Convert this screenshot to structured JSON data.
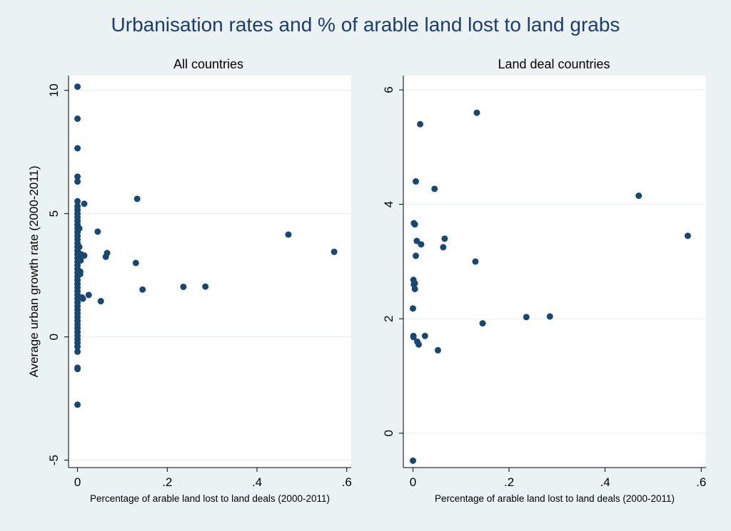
{
  "figure_title": "Urbanisation rates and % of arable land lost to land grabs",
  "colors": {
    "background": "#eaf2f3",
    "plot_bg": "#ffffff",
    "marker": "#1a476f",
    "title": "#1e3c6e",
    "grid": "#e6eded"
  },
  "chart_data": [
    {
      "type": "scatter",
      "title": "All countries",
      "xlabel": "Percentage of arable land lost to land deals (2000-2011)",
      "ylabel": "Average urban growth rate (2000-2011)",
      "xlim": [
        -0.02,
        0.61
      ],
      "ylim": [
        -5.3,
        10.6
      ],
      "xticks": [
        0,
        0.2,
        0.4,
        0.6
      ],
      "xtick_labels": [
        "0",
        ".2",
        ".4",
        ".6"
      ],
      "yticks": [
        -5,
        0,
        5,
        10
      ],
      "ytick_labels": [
        "-5",
        "0",
        "5",
        "10"
      ],
      "grid": true,
      "points": [
        [
          0,
          10.15
        ],
        [
          0,
          8.85
        ],
        [
          0,
          7.65
        ],
        [
          0,
          6.5
        ],
        [
          0,
          6.3
        ],
        [
          0,
          5.5
        ],
        [
          0,
          5.3
        ],
        [
          0,
          5.15
        ],
        [
          0,
          5.0
        ],
        [
          0,
          4.85
        ],
        [
          0,
          4.7
        ],
        [
          0,
          4.55
        ],
        [
          0,
          4.4
        ],
        [
          0,
          4.25
        ],
        [
          0,
          4.1
        ],
        [
          0,
          3.95
        ],
        [
          0,
          3.8
        ],
        [
          0,
          3.65
        ],
        [
          0,
          3.5
        ],
        [
          0,
          3.35
        ],
        [
          0,
          3.2
        ],
        [
          0,
          3.05
        ],
        [
          0,
          2.9
        ],
        [
          0,
          2.75
        ],
        [
          0,
          2.6
        ],
        [
          0,
          2.45
        ],
        [
          0,
          2.3
        ],
        [
          0,
          2.15
        ],
        [
          0,
          2.0
        ],
        [
          0,
          1.85
        ],
        [
          0,
          1.7
        ],
        [
          0,
          1.55
        ],
        [
          0,
          1.4
        ],
        [
          0,
          1.25
        ],
        [
          0,
          1.1
        ],
        [
          0,
          0.95
        ],
        [
          0,
          0.8
        ],
        [
          0,
          0.65
        ],
        [
          0,
          0.5
        ],
        [
          0,
          0.35
        ],
        [
          0,
          0.2
        ],
        [
          0,
          0.05
        ],
        [
          0,
          -0.1
        ],
        [
          0,
          -0.25
        ],
        [
          0,
          -0.4
        ],
        [
          0,
          -0.6
        ],
        [
          0,
          -1.25
        ],
        [
          0,
          -1.3
        ],
        [
          0,
          -2.75
        ],
        [
          0.002,
          3.65
        ],
        [
          0.004,
          3.65
        ],
        [
          0.004,
          4.4
        ],
        [
          0.006,
          2.55
        ],
        [
          0.006,
          2.65
        ],
        [
          0.007,
          3.1
        ],
        [
          0.008,
          3.35
        ],
        [
          0.01,
          1.6
        ],
        [
          0.012,
          1.55
        ],
        [
          0.015,
          3.3
        ],
        [
          0.015,
          5.4
        ],
        [
          0.025,
          1.7
        ],
        [
          0.045,
          4.27
        ],
        [
          0.052,
          1.45
        ],
        [
          0.063,
          3.25
        ],
        [
          0.066,
          3.4
        ],
        [
          0.13,
          3.0
        ],
        [
          0.133,
          5.6
        ],
        [
          0.145,
          1.92
        ],
        [
          0.236,
          2.03
        ],
        [
          0.285,
          2.04
        ],
        [
          0.47,
          4.15
        ],
        [
          0.572,
          3.45
        ]
      ]
    },
    {
      "type": "scatter",
      "title": "Land deal countries",
      "xlabel": "Percentage of arable land lost to land deals (2000-2011)",
      "ylabel": "",
      "xlim": [
        -0.02,
        0.61
      ],
      "ylim": [
        -0.6,
        6.25
      ],
      "xticks": [
        0,
        0.2,
        0.4,
        0.6
      ],
      "xtick_labels": [
        "0",
        ".2",
        ".4",
        ".6"
      ],
      "yticks": [
        0,
        2,
        4,
        6
      ],
      "ytick_labels": [
        "0",
        "2",
        "4",
        "6"
      ],
      "grid": true,
      "points": [
        [
          0,
          -0.48
        ],
        [
          0,
          2.18
        ],
        [
          0.001,
          1.7
        ],
        [
          0.001,
          1.68
        ],
        [
          0.001,
          2.68
        ],
        [
          0.002,
          2.6
        ],
        [
          0.002,
          3.67
        ],
        [
          0.004,
          2.52
        ],
        [
          0.004,
          3.65
        ],
        [
          0.004,
          2.62
        ],
        [
          0.006,
          3.1
        ],
        [
          0.006,
          4.4
        ],
        [
          0.008,
          3.36
        ],
        [
          0.009,
          1.6
        ],
        [
          0.012,
          1.55
        ],
        [
          0.015,
          5.4
        ],
        [
          0.017,
          3.3
        ],
        [
          0.025,
          1.7
        ],
        [
          0.045,
          4.27
        ],
        [
          0.052,
          1.45
        ],
        [
          0.063,
          3.25
        ],
        [
          0.066,
          3.4
        ],
        [
          0.13,
          3.0
        ],
        [
          0.133,
          5.6
        ],
        [
          0.145,
          1.92
        ],
        [
          0.236,
          2.03
        ],
        [
          0.285,
          2.04
        ],
        [
          0.47,
          4.15
        ],
        [
          0.572,
          3.45
        ]
      ]
    }
  ]
}
